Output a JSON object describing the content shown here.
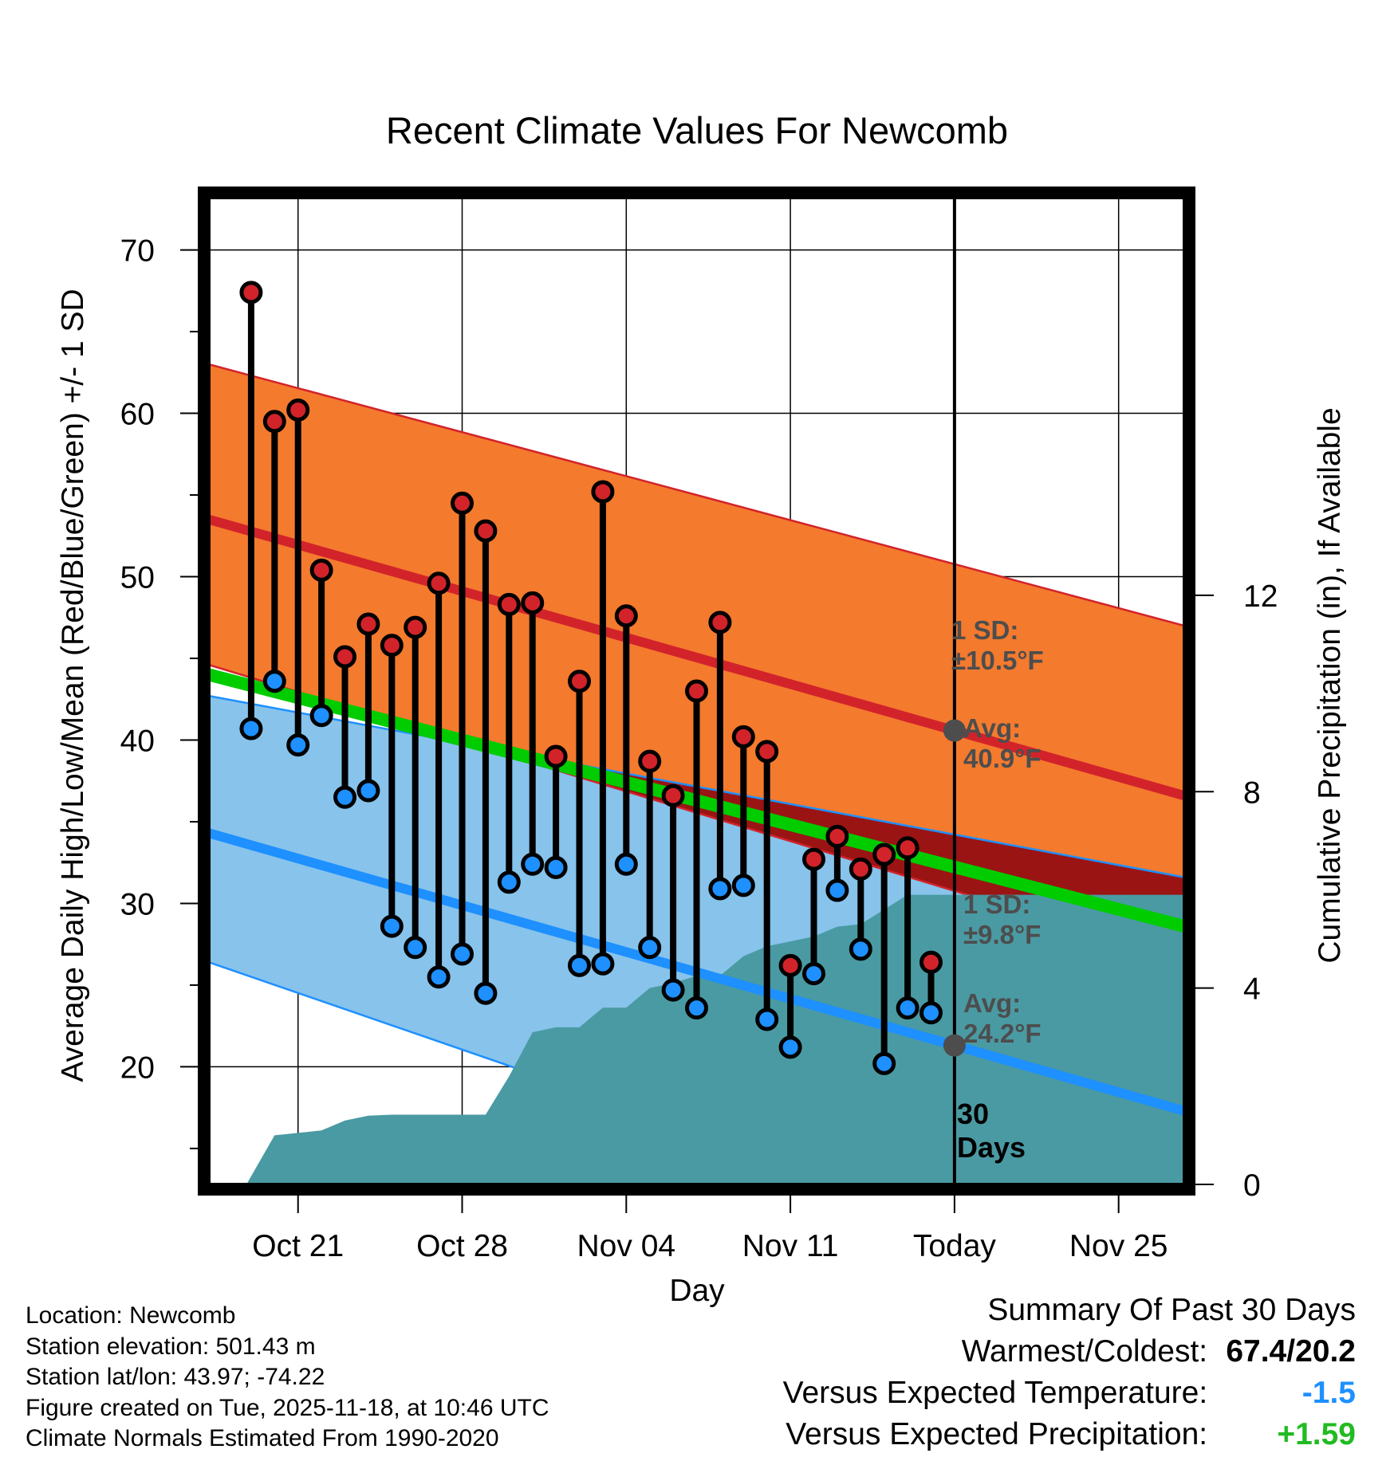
{
  "chart_data": {
    "type": "range-bar",
    "title": "Recent Climate Values For Newcomb",
    "xlabel": "Day",
    "ylabel_left": "Average Daily High/Low/Mean (Red/Blue/Green) +/- 1 SD",
    "ylabel_right": "Cumulative Precipitation (in), If Available",
    "x_range_days": [
      -31.8,
      9.8
    ],
    "ylim_left": [
      12.8,
      73.2
    ],
    "ylim_right": [
      0,
      20.1
    ],
    "y_ticks_left": [
      20,
      30,
      40,
      50,
      60,
      70
    ],
    "y_ticks_right": [
      0,
      4,
      8,
      12
    ],
    "x_ticks": [
      {
        "day": -28,
        "label": "Oct 21"
      },
      {
        "day": -21,
        "label": "Oct 28"
      },
      {
        "day": -14,
        "label": "Nov 04"
      },
      {
        "day": -7,
        "label": "Nov 11"
      },
      {
        "day": 0,
        "label": "Today"
      },
      {
        "day": 7,
        "label": "Nov 25"
      }
    ],
    "normals": {
      "high_mean": {
        "start": 53.5,
        "end": 36.6
      },
      "high_sd_upper": {
        "start": 63.0,
        "end": 47.0
      },
      "high_sd_lower": {
        "start": 44.6,
        "end": 26.5
      },
      "mean": {
        "start": 44.0,
        "end": 28.6
      },
      "low_mean": {
        "start": 34.3,
        "end": 17.3
      },
      "low_sd_upper": {
        "start": 42.7,
        "end": 31.6
      },
      "low_sd_lower": {
        "start": 26.4,
        "end": 5.8
      }
    },
    "days": [
      -30,
      -29,
      -28,
      -27,
      -26,
      -25,
      -24,
      -23,
      -22,
      -21,
      -20,
      -19,
      -18,
      -17,
      -16,
      -15,
      -14,
      -13,
      -12,
      -11,
      -10,
      -9,
      -8,
      -7,
      -6,
      -5,
      -4,
      -3,
      -2,
      -1
    ],
    "highs": [
      67.4,
      59.5,
      60.2,
      50.4,
      45.1,
      47.1,
      45.8,
      46.9,
      49.6,
      54.5,
      52.8,
      48.3,
      48.4,
      39.0,
      43.6,
      55.2,
      47.6,
      38.7,
      36.6,
      43.0,
      47.2,
      40.2,
      39.3,
      26.2,
      32.7,
      34.1,
      32.1,
      33.0,
      33.4,
      26.4
    ],
    "lows": [
      40.7,
      43.6,
      39.7,
      41.5,
      36.5,
      36.9,
      28.6,
      27.3,
      25.5,
      26.9,
      24.5,
      31.3,
      32.4,
      32.2,
      26.2,
      26.3,
      32.4,
      27.3,
      24.7,
      23.6,
      30.9,
      31.1,
      22.9,
      21.2,
      25.7,
      30.8,
      27.2,
      20.2,
      23.6,
      23.3
    ],
    "precip_days": [
      -30.2,
      -29,
      -28,
      -27,
      -26,
      -25,
      -24,
      -23,
      -22,
      -21,
      -20,
      -19,
      -18,
      -17,
      -16,
      -15,
      -14,
      -13,
      -12,
      -11,
      -10,
      -9,
      -8,
      -7,
      -6,
      -5,
      -4,
      -3,
      -2,
      -1,
      0,
      9.8
    ],
    "precip_cumulative": [
      0,
      1.0,
      1.05,
      1.1,
      1.3,
      1.4,
      1.42,
      1.42,
      1.42,
      1.42,
      1.42,
      2.2,
      3.1,
      3.2,
      3.2,
      3.6,
      3.6,
      4.0,
      4.1,
      4.25,
      4.25,
      4.65,
      4.85,
      4.95,
      5.05,
      5.25,
      5.3,
      5.6,
      5.9,
      5.9,
      5.9,
      5.9
    ],
    "annotations": {
      "high_sd": [
        "1 SD:",
        "±10.5°F"
      ],
      "high_avg": [
        "Avg:",
        "40.9°F"
      ],
      "low_sd": [
        "1 SD:",
        "±9.8°F"
      ],
      "low_avg": [
        "Avg:",
        "24.2°F"
      ],
      "period": [
        "30",
        "Days"
      ]
    },
    "colors": {
      "high_band": "#f47a2e",
      "low_band": "#87c3eb",
      "overlap": "#9a1414",
      "high_line": "#d2232a",
      "low_line": "#1e90ff",
      "mean_line": "#00cc00",
      "precip": "#4a9aa3",
      "high_dot": "#d2232a",
      "low_dot": "#1e90ff",
      "annotation": "#4d4d4d"
    }
  },
  "footer": {
    "location": "Location: Newcomb",
    "elevation": "Station elevation: 501.43 m",
    "latlon": "Station lat/lon: 43.97; -74.22",
    "created": "Figure created on Tue, 2025-11-18, at 10:46 UTC",
    "normals": "Climate Normals Estimated From 1990-2020"
  },
  "summary": {
    "title": "Summary Of Past 30 Days",
    "warmest_label": "Warmest/Coldest:",
    "warmest_value": "67.4/20.2",
    "temp_label": "Versus Expected Temperature:",
    "temp_value": "-1.5",
    "temp_color": "#1e90ff",
    "precip_label": "Versus Expected Precipitation:",
    "precip_value": "+1.59",
    "precip_color": "#22bb22"
  }
}
